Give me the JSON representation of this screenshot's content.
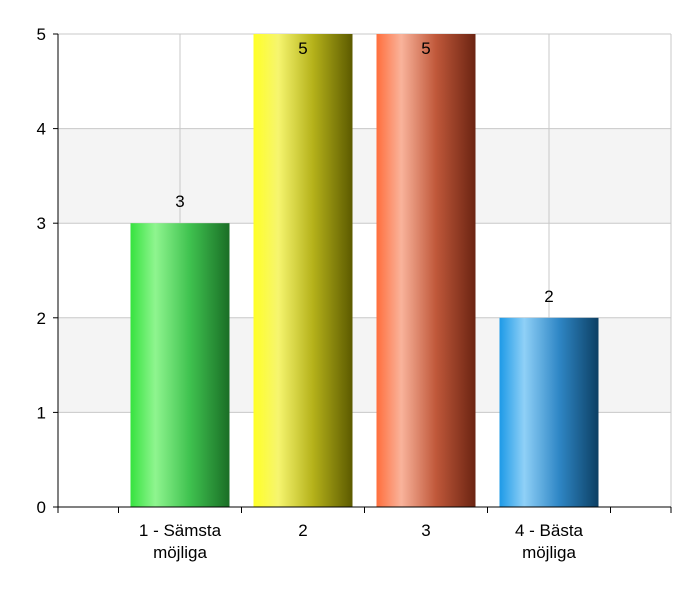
{
  "chart_data": {
    "type": "bar",
    "title": "",
    "xlabel": "",
    "ylabel": "",
    "categories": [
      [
        "1 - Sämsta",
        "möjliga"
      ],
      [
        "2"
      ],
      [
        "3"
      ],
      [
        "4 - Bästa",
        "möjliga"
      ]
    ],
    "values": [
      3,
      5,
      5,
      2
    ],
    "data_labels": [
      "3",
      "5",
      "5",
      "2"
    ],
    "ylim": [
      0,
      5
    ],
    "yticks": [
      "0",
      "1",
      "2",
      "3",
      "4",
      "5"
    ],
    "grid": true,
    "legend": "none",
    "bar_colors": [
      {
        "dark": "#1a6e26",
        "mid": "#3fc24f",
        "light": "#8ff58f",
        "edge": "#36e23f"
      },
      {
        "dark": "#5c5a00",
        "mid": "#b5b21a",
        "light": "#f6f56f",
        "edge": "#ffff26"
      },
      {
        "dark": "#6b2412",
        "mid": "#c0583a",
        "light": "#f9b39b",
        "edge": "#ff6e3c"
      },
      {
        "dark": "#0c3f63",
        "mid": "#2f87c6",
        "light": "#8fd0f7",
        "edge": "#1d9ae7"
      }
    ],
    "band_color": "#f4f4f4",
    "grid_color": "#c8c8c8"
  }
}
